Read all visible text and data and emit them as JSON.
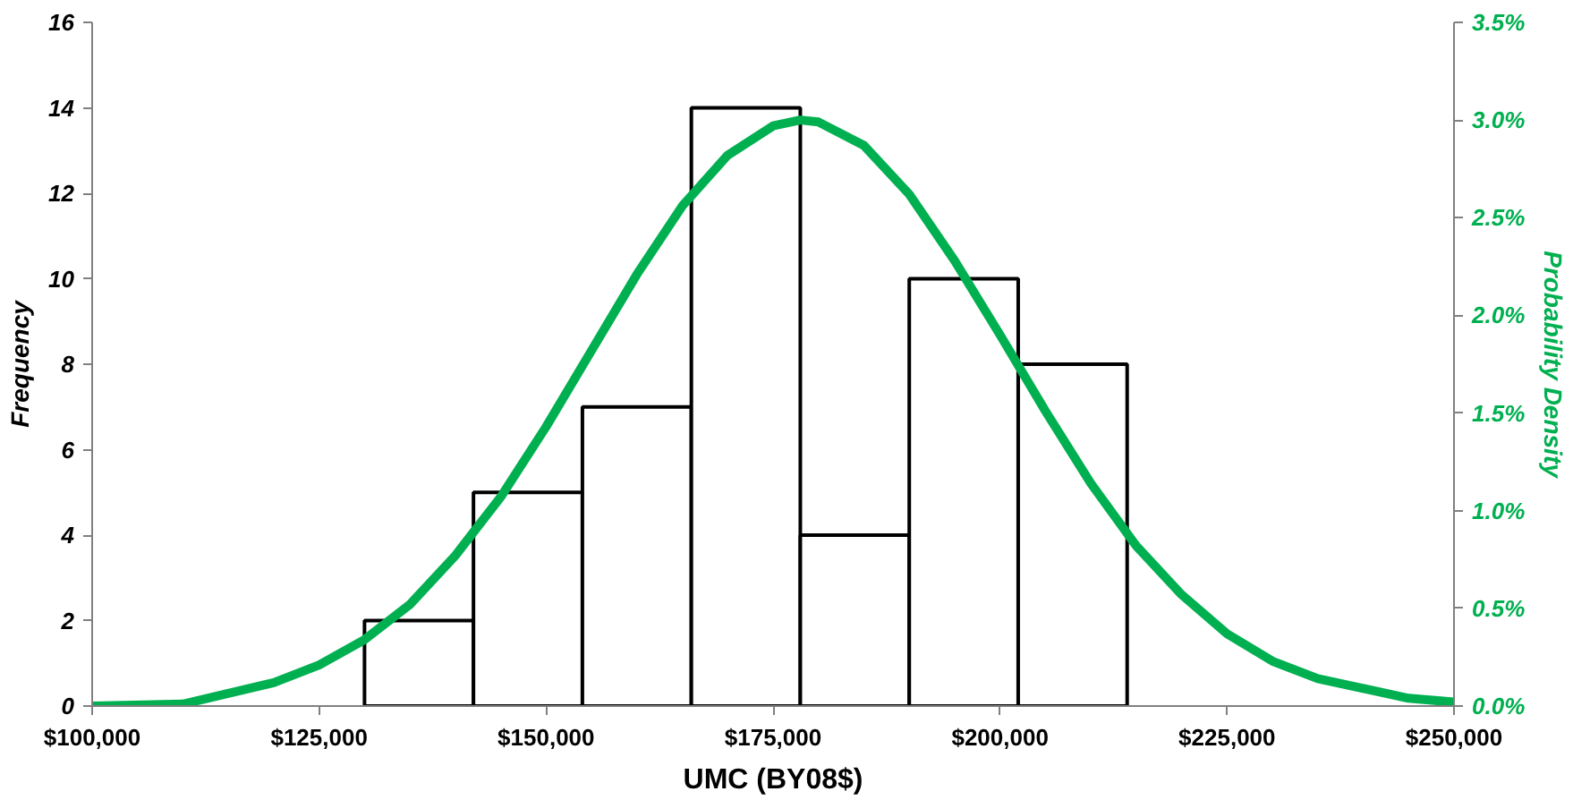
{
  "chart_data": {
    "type": "histogram",
    "xlabel": "UMC (BY08$)",
    "ylabel": "Frequency",
    "y2label": "Probability Density",
    "bins": [
      130000,
      142000,
      154000,
      166000,
      178000,
      190000,
      202000,
      214000
    ],
    "values": [
      2,
      5,
      7,
      14,
      4,
      10,
      8
    ],
    "color": "#ffffff",
    "series": [
      {
        "type": "line",
        "axis": "y2",
        "color": "#00b050",
        "x": [
          100000,
          110000,
          120000,
          125000,
          130000,
          135000,
          140000,
          145000,
          150000,
          155000,
          160000,
          165000,
          170000,
          175000,
          178000,
          180000,
          185000,
          190000,
          195000,
          200000,
          205000,
          210000,
          215000,
          220000,
          225000,
          230000,
          235000,
          245000,
          250000
        ],
        "values": [
          0.0,
          0.01,
          0.12,
          0.21,
          0.34,
          0.52,
          0.77,
          1.07,
          1.43,
          1.82,
          2.21,
          2.56,
          2.82,
          2.97,
          3.0,
          2.99,
          2.87,
          2.62,
          2.28,
          1.9,
          1.51,
          1.14,
          0.82,
          0.57,
          0.37,
          0.23,
          0.14,
          0.04,
          0.02
        ]
      }
    ],
    "xlim": [
      100000,
      250000
    ],
    "xticks": [
      {
        "value": 100000,
        "label": "$100,000"
      },
      {
        "value": 125000,
        "label": "$125,000"
      },
      {
        "value": 150000,
        "label": "$150,000"
      },
      {
        "value": 175000,
        "label": "$175,000"
      },
      {
        "value": 200000,
        "label": "$200,000"
      },
      {
        "value": 225000,
        "label": "$225,000"
      },
      {
        "value": 250000,
        "label": "$250,000"
      }
    ],
    "ylim": [
      0,
      16
    ],
    "yticks": [
      0,
      2,
      4,
      6,
      8,
      10,
      12,
      14,
      16
    ],
    "y2lim": [
      0,
      3.5
    ],
    "y2ticks": [
      {
        "value": 0,
        "label": "0.0%"
      },
      {
        "value": 0.5,
        "label": "0.5%"
      },
      {
        "value": 1.0,
        "label": "1.0%"
      },
      {
        "value": 1.5,
        "label": "1.5%"
      },
      {
        "value": 2.0,
        "label": "2.0%"
      },
      {
        "value": 2.5,
        "label": "2.5%"
      },
      {
        "value": 3.0,
        "label": "3.0%"
      },
      {
        "value": 3.5,
        "label": "3.5%"
      }
    ],
    "grid": false
  }
}
